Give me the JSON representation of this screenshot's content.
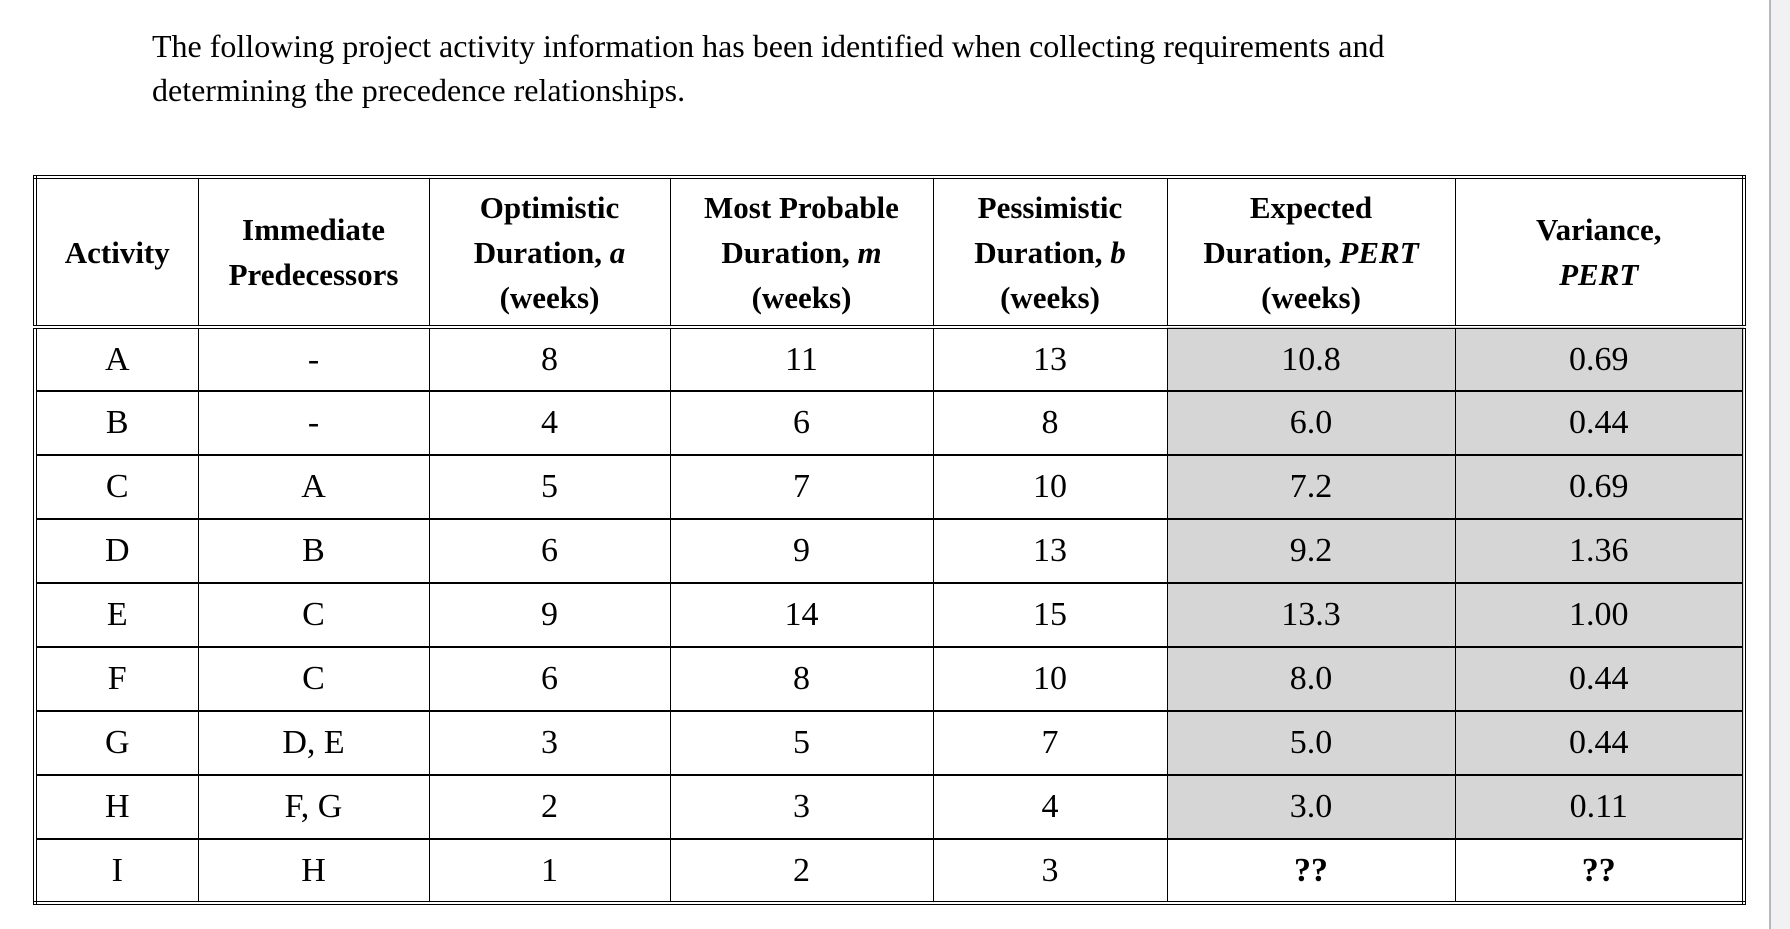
{
  "intro": {
    "line1": "The following project activity information has been identified when collecting requirements and",
    "line2": "determining the precedence relationships."
  },
  "colors": {
    "cell_shading": "#d6d6d6",
    "table_border": "#000000",
    "page_background": "#ffffff",
    "edge_strip_background": "#f1f1f3",
    "edge_strip_border": "#b6b6be"
  },
  "table": {
    "headers": [
      {
        "l1": "Activity"
      },
      {
        "l1": "Immediate",
        "l2": "Predecessors"
      },
      {
        "l1": "Optimistic",
        "l2": "Duration, ",
        "l2i": "a",
        "l3": "(weeks)"
      },
      {
        "l1": "Most Probable",
        "l2": "Duration, ",
        "l2i": "m",
        "l3": "(weeks)"
      },
      {
        "l1": "Pessimistic",
        "l2": "Duration, ",
        "l2i": "b",
        "l3": "(weeks)"
      },
      {
        "l1": "Expected",
        "l2": "Duration, ",
        "l2i": "PERT",
        "l3": "(weeks)"
      },
      {
        "l1": "Variance,",
        "l2i": "PERT"
      }
    ],
    "column_names": [
      "activity",
      "predecessors",
      "optimistic",
      "most-probable",
      "pessimistic",
      "expected-pert",
      "variance-pert"
    ],
    "rows": [
      {
        "cells": [
          "A",
          "-",
          "8",
          "11",
          "13",
          "10.8",
          "0.69"
        ],
        "shaded": true,
        "pert_bold": false
      },
      {
        "cells": [
          "B",
          "-",
          "4",
          "6",
          "8",
          "6.0",
          "0.44"
        ],
        "shaded": true,
        "pert_bold": false
      },
      {
        "cells": [
          "C",
          "A",
          "5",
          "7",
          "10",
          "7.2",
          "0.69"
        ],
        "shaded": true,
        "pert_bold": false
      },
      {
        "cells": [
          "D",
          "B",
          "6",
          "9",
          "13",
          "9.2",
          "1.36"
        ],
        "shaded": true,
        "pert_bold": false
      },
      {
        "cells": [
          "E",
          "C",
          "9",
          "14",
          "15",
          "13.3",
          "1.00"
        ],
        "shaded": true,
        "pert_bold": false
      },
      {
        "cells": [
          "F",
          "C",
          "6",
          "8",
          "10",
          "8.0",
          "0.44"
        ],
        "shaded": true,
        "pert_bold": false
      },
      {
        "cells": [
          "G",
          "D, E",
          "3",
          "5",
          "7",
          "5.0",
          "0.44"
        ],
        "shaded": true,
        "pert_bold": false
      },
      {
        "cells": [
          "H",
          "F, G",
          "2",
          "3",
          "4",
          "3.0",
          "0.11"
        ],
        "shaded": true,
        "pert_bold": false
      },
      {
        "cells": [
          "I",
          "H",
          "1",
          "2",
          "3",
          "??",
          "??"
        ],
        "shaded": false,
        "pert_bold": true
      }
    ]
  }
}
